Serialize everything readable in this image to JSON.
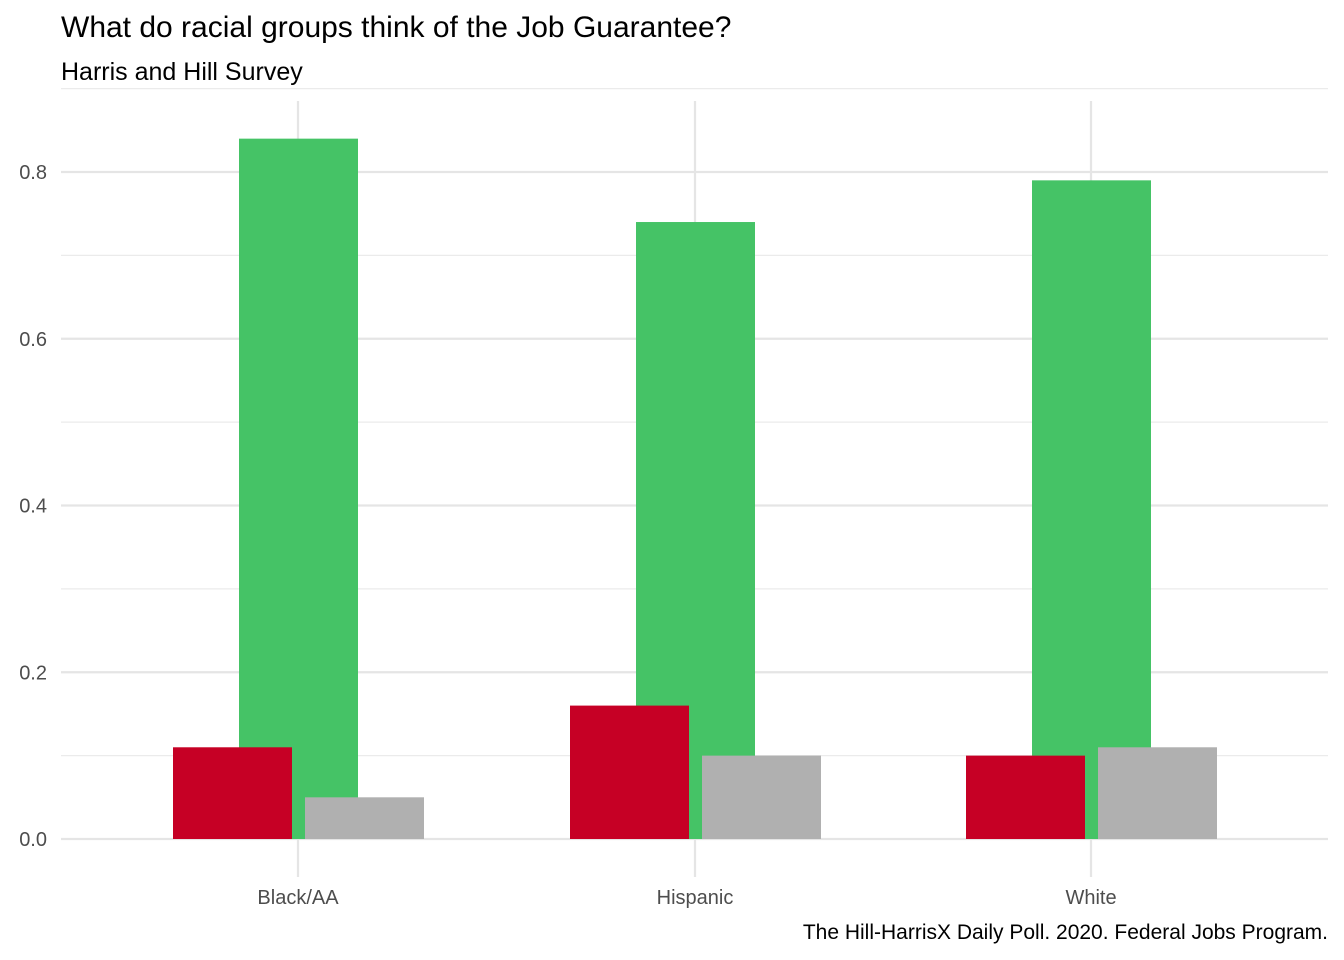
{
  "chart_data": {
    "type": "bar",
    "title": "What do racial groups think of the Job Guarantee?",
    "subtitle": "Harris and Hill Survey",
    "caption": "The Hill-HarrisX Daily Poll. 2020. Federal Jobs Program.",
    "xlabel": "",
    "ylabel": "",
    "categories": [
      "Black/AA",
      "Hispanic",
      "White"
    ],
    "series": [
      {
        "values": [
          0.84,
          0.74,
          0.79
        ],
        "color": "#45C366"
      },
      {
        "values": [
          0.11,
          0.16,
          0.1
        ],
        "color": "#C60025"
      },
      {
        "values": [
          0.05,
          0.1,
          0.11
        ],
        "color": "#B0B0B0"
      }
    ],
    "ylim": [
      0,
      0.88
    ],
    "yticks": [
      "0.0",
      "0.2",
      "0.4",
      "0.6",
      "0.8"
    ],
    "ytick_values": [
      0,
      0.2,
      0.4,
      0.6,
      0.8
    ],
    "grid": true,
    "legend": "none"
  }
}
